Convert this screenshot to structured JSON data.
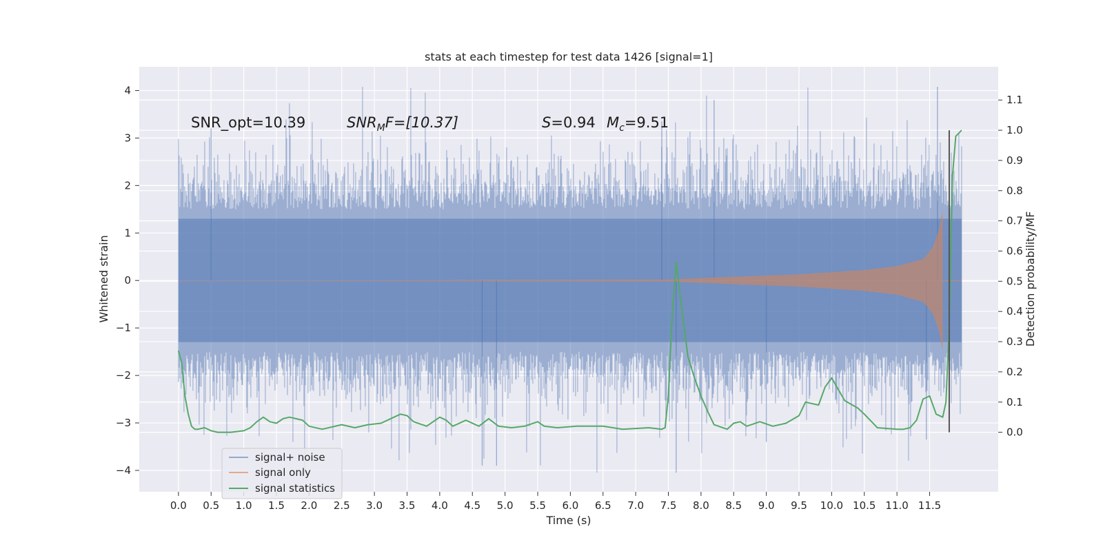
{
  "chart_data": {
    "type": "line",
    "title": "stats at each timestep for test data 1426 [signal=1]",
    "xlabel": "Time (s)",
    "ylabel_left": "Whitened strain",
    "ylabel_right": "Detection probability/MF",
    "xlim": [
      -0.6,
      12.55
    ],
    "ylim_left": [
      -4.45,
      4.5
    ],
    "ylim_right": [
      -0.197,
      1.21
    ],
    "xticks": [
      "0.0",
      "0.5",
      "1.0",
      "1.5",
      "2.0",
      "2.5",
      "3.0",
      "3.5",
      "4.0",
      "4.5",
      "5.0",
      "5.5",
      "6.0",
      "6.5",
      "7.0",
      "7.5",
      "8.0",
      "8.5",
      "9.0",
      "9.5",
      "10.0",
      "10.5",
      "11.0",
      "11.5"
    ],
    "yticks_left": [
      4,
      3,
      2,
      1,
      0,
      -1,
      -2,
      -3,
      -4
    ],
    "yticks_left_labels": [
      "4",
      "3",
      "2",
      "1",
      "0",
      "−1",
      "−2",
      "−3",
      "−4"
    ],
    "yticks_right": [
      1.1,
      1.0,
      0.9,
      0.8,
      0.7,
      0.6,
      0.5,
      0.4,
      0.3,
      0.2,
      0.1,
      0.0
    ],
    "yticks_right_labels": [
      "1.1",
      "1.0",
      "0.9",
      "0.8",
      "0.7",
      "0.6",
      "0.5",
      "0.4",
      "0.3",
      "0.2",
      "0.1",
      "0.0"
    ],
    "grid": true,
    "legend_position": "lower-left",
    "annotations": {
      "snr_opt": "SNR_opt=10.39",
      "snr_mf_sym": "SNR",
      "snr_mf_sub": "M",
      "snr_mf_rest": "F=[10.37]",
      "s_sym": "S",
      "s_val": "=0.94",
      "mc_sym": "M",
      "mc_sub": "c",
      "mc_val": "=9.51"
    },
    "series": [
      {
        "name": "signal+ noise",
        "color": "#4c72b0",
        "kind": "noise",
        "t_range": [
          0.0,
          11.99
        ],
        "typical_amplitude": 1.3,
        "max_value": 4.08,
        "min_value": -4.05
      },
      {
        "name": "signal only",
        "color": "#dd8452",
        "kind": "chirp",
        "t_range": [
          0.0,
          11.7
        ],
        "envelope": {
          "t": [
            0,
            7.5,
            8.5,
            9.5,
            10.5,
            11.0,
            11.4,
            11.55,
            11.65,
            11.7
          ],
          "amp": [
            0,
            0.02,
            0.08,
            0.13,
            0.22,
            0.3,
            0.45,
            0.7,
            1.1,
            1.5
          ]
        }
      },
      {
        "name": "signal statistics",
        "color": "#55a868",
        "axis": "right",
        "x": [
          0.0,
          0.05,
          0.1,
          0.15,
          0.2,
          0.25,
          0.3,
          0.4,
          0.5,
          0.6,
          0.8,
          1.0,
          1.1,
          1.2,
          1.3,
          1.4,
          1.5,
          1.6,
          1.7,
          1.8,
          1.9,
          2.0,
          2.2,
          2.5,
          2.7,
          2.9,
          3.1,
          3.3,
          3.4,
          3.5,
          3.6,
          3.8,
          4.0,
          4.1,
          4.2,
          4.4,
          4.6,
          4.75,
          4.9,
          5.1,
          5.3,
          5.5,
          5.6,
          5.8,
          6.1,
          6.5,
          6.8,
          7.2,
          7.4,
          7.45,
          7.5,
          7.55,
          7.62,
          7.7,
          7.8,
          7.9,
          8.0,
          8.1,
          8.2,
          8.4,
          8.5,
          8.6,
          8.7,
          8.9,
          9.1,
          9.3,
          9.5,
          9.6,
          9.8,
          9.9,
          10.0,
          10.2,
          10.4,
          10.5,
          10.7,
          11.0,
          11.1,
          11.2,
          11.3,
          11.4,
          11.5,
          11.6,
          11.7,
          11.75,
          11.8,
          11.85,
          11.9,
          11.99
        ],
        "y": [
          0.27,
          0.23,
          0.12,
          0.06,
          0.02,
          0.01,
          0.01,
          0.015,
          0.005,
          0.0,
          0.0,
          0.005,
          0.015,
          0.035,
          0.05,
          0.035,
          0.03,
          0.045,
          0.05,
          0.045,
          0.04,
          0.02,
          0.01,
          0.025,
          0.015,
          0.025,
          0.03,
          0.05,
          0.06,
          0.055,
          0.035,
          0.02,
          0.05,
          0.04,
          0.02,
          0.04,
          0.02,
          0.045,
          0.02,
          0.015,
          0.02,
          0.035,
          0.02,
          0.015,
          0.02,
          0.02,
          0.01,
          0.015,
          0.01,
          0.015,
          0.12,
          0.35,
          0.565,
          0.42,
          0.25,
          0.18,
          0.12,
          0.07,
          0.025,
          0.01,
          0.03,
          0.035,
          0.02,
          0.035,
          0.02,
          0.03,
          0.055,
          0.1,
          0.09,
          0.15,
          0.18,
          0.105,
          0.08,
          0.06,
          0.015,
          0.01,
          0.01,
          0.015,
          0.04,
          0.11,
          0.12,
          0.06,
          0.05,
          0.1,
          0.35,
          0.85,
          0.98,
          1.0
        ]
      }
    ],
    "vertical_line": {
      "x": 11.8,
      "y_range_right": [
        0.0,
        1.0
      ]
    },
    "colors": {
      "plot_bg": "#eaeaf2",
      "grid": "#ffffff",
      "noise": "#4c72b0",
      "signal": "#dd8452",
      "stats": "#55a868",
      "vline": "#555555"
    }
  }
}
